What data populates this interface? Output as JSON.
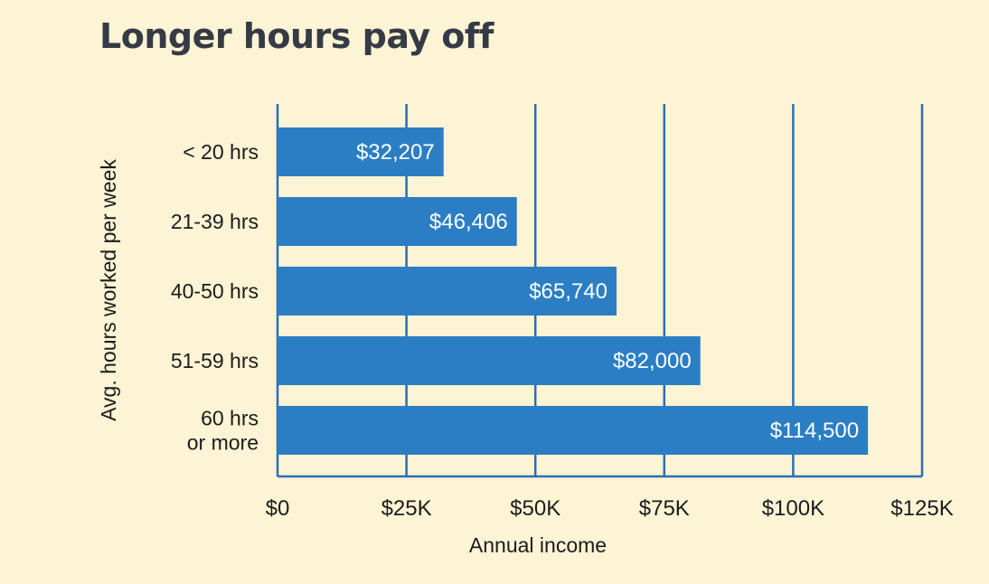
{
  "chart_data": {
    "type": "bar",
    "orientation": "horizontal",
    "title": "Longer hours pay off",
    "xlabel": "Annual income",
    "ylabel": "Avg. hours worked per week",
    "categories": [
      [
        "< 20 hrs"
      ],
      [
        "21-39 hrs"
      ],
      [
        "40-50 hrs"
      ],
      [
        "51-59 hrs"
      ],
      [
        "60 hrs",
        "or more"
      ]
    ],
    "values": [
      32207,
      46406,
      65740,
      82000,
      114500
    ],
    "value_labels": [
      "$32,207",
      "$46,406",
      "$65,740",
      "$82,000",
      "$114,500"
    ],
    "xticks": [
      {
        "value": 0,
        "label": "$0"
      },
      {
        "value": 25000,
        "label": "$25K"
      },
      {
        "value": 50000,
        "label": "$50K"
      },
      {
        "value": 75000,
        "label": "$75K"
      },
      {
        "value": 100000,
        "label": "$100K"
      },
      {
        "value": 125000,
        "label": "$125K"
      }
    ],
    "xlim": [
      0,
      125000
    ],
    "grid": true,
    "bar_color": "#2b7ec4",
    "grid_color": "#2b6fb3",
    "background": "#fdf3d5"
  }
}
